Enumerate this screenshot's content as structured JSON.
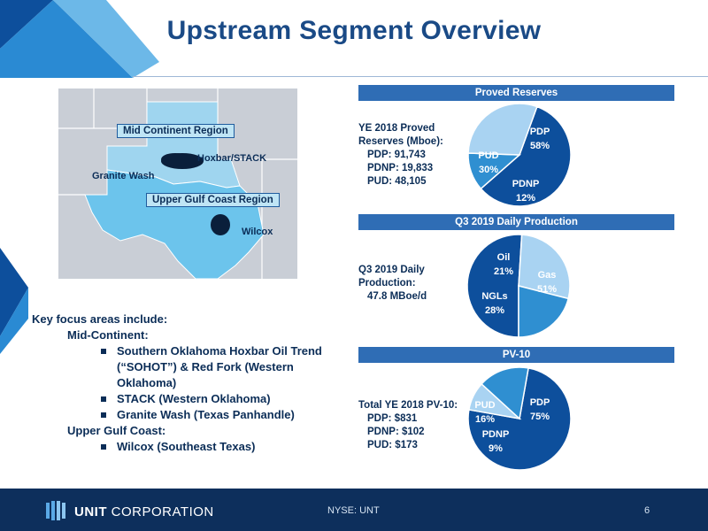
{
  "slide": {
    "title": "Upstream Segment Overview",
    "page_number": "6",
    "ticker": "NYSE: UNT",
    "company_name_bold": "UNIT",
    "company_name_rest": "CORPORATION"
  },
  "map": {
    "mid_continent_label": "Mid Continent Region",
    "upper_gulf_label": "Upper Gulf Coast Region",
    "hoxbar_label": "Hoxbar/STACK",
    "granite_wash_label": "Granite Wash",
    "wilcox_label": "Wilcox"
  },
  "proved_reserves": {
    "header": "Proved Reserves",
    "heading_line1": "YE 2018 Proved",
    "heading_line2": "Reserves (Mboe):",
    "lines": [
      "PDP: 91,743",
      "PDNP: 19,833",
      "PUD: 48,105"
    ]
  },
  "daily_production": {
    "header": "Q3 2019 Daily Production",
    "heading_line1": "Q3 2019 Daily",
    "heading_line2": "Production:",
    "lines": [
      "47.8 MBoe/d"
    ]
  },
  "pv10": {
    "header": "PV-10",
    "heading_line1": "Total YE 2018 PV-10:",
    "lines": [
      "PDP: $831",
      "PDNP: $102",
      "PUD: $173"
    ]
  },
  "key_focus": {
    "intro": "Key focus areas include:",
    "region1": "Mid-Continent:",
    "region1_items": [
      "Southern Oklahoma Hoxbar Oil Trend (“SOHOT”) & Red Fork (Western Oklahoma)",
      "STACK (Western Oklahoma)",
      "Granite Wash (Texas Panhandle)"
    ],
    "region2": "Upper Gulf Coast:",
    "region2_items": [
      "Wilcox (Southeast Texas)"
    ]
  },
  "chart_data": [
    {
      "type": "pie",
      "title": "Proved Reserves",
      "categories": [
        "PDP",
        "PDNP",
        "PUD"
      ],
      "values": [
        58,
        12,
        30
      ],
      "value_labels": [
        "58%",
        "12%",
        "30%"
      ],
      "colors": [
        "#0d4f9c",
        "#2f8fd1",
        "#a9d3f2"
      ]
    },
    {
      "type": "pie",
      "title": "Q3 2019 Daily Production",
      "categories": [
        "Gas",
        "NGLs",
        "Oil"
      ],
      "values": [
        51,
        28,
        21
      ],
      "value_labels": [
        "51%",
        "28%",
        "21%"
      ],
      "colors": [
        "#0d4f9c",
        "#a9d3f2",
        "#2f8fd1"
      ]
    },
    {
      "type": "pie",
      "title": "PV-10",
      "categories": [
        "PDP",
        "PDNP",
        "PUD"
      ],
      "values": [
        75,
        9,
        16
      ],
      "value_labels": [
        "75%",
        "9%",
        "16%"
      ],
      "colors": [
        "#0d4f9c",
        "#a9d3f2",
        "#2f8fd1"
      ]
    }
  ]
}
